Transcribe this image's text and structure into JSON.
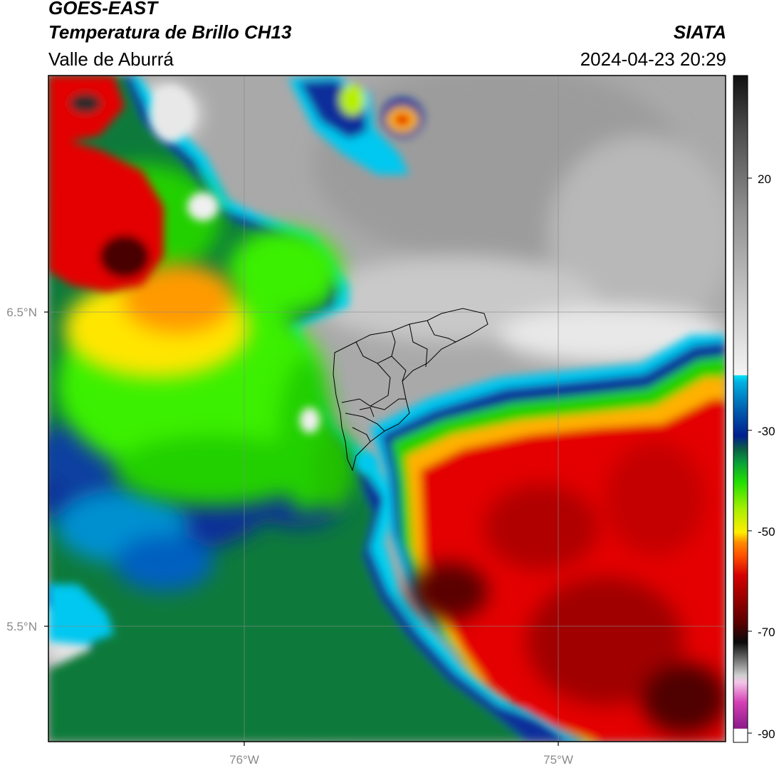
{
  "header": {
    "satellite": "GOES-EAST",
    "product": "Temperatura de Brillo CH13",
    "region": "Valle de Aburrá",
    "agency": "SIATA",
    "datetime": "2024-04-23 20:29"
  },
  "axes": {
    "lat_labels": [
      "6.5°N",
      "5.5°N"
    ],
    "lon_labels": [
      "76°W",
      "75°W"
    ]
  },
  "colorbar": {
    "ticks": [
      "20",
      "-30",
      "-50",
      "-70",
      "-90"
    ],
    "colors": {
      "cold_white": "#ffffff",
      "magenta": "#d63fb5",
      "black": "#0a0a0a",
      "red": "#d40000",
      "orange": "#ff8c00",
      "yellow": "#ffee00",
      "green": "#22e000",
      "dark_green": "#0a6b2e",
      "navy": "#001f8f",
      "cyan": "#00d8f0",
      "gray": "#9a9a9a",
      "dark_gray": "#1a1a1a"
    }
  }
}
